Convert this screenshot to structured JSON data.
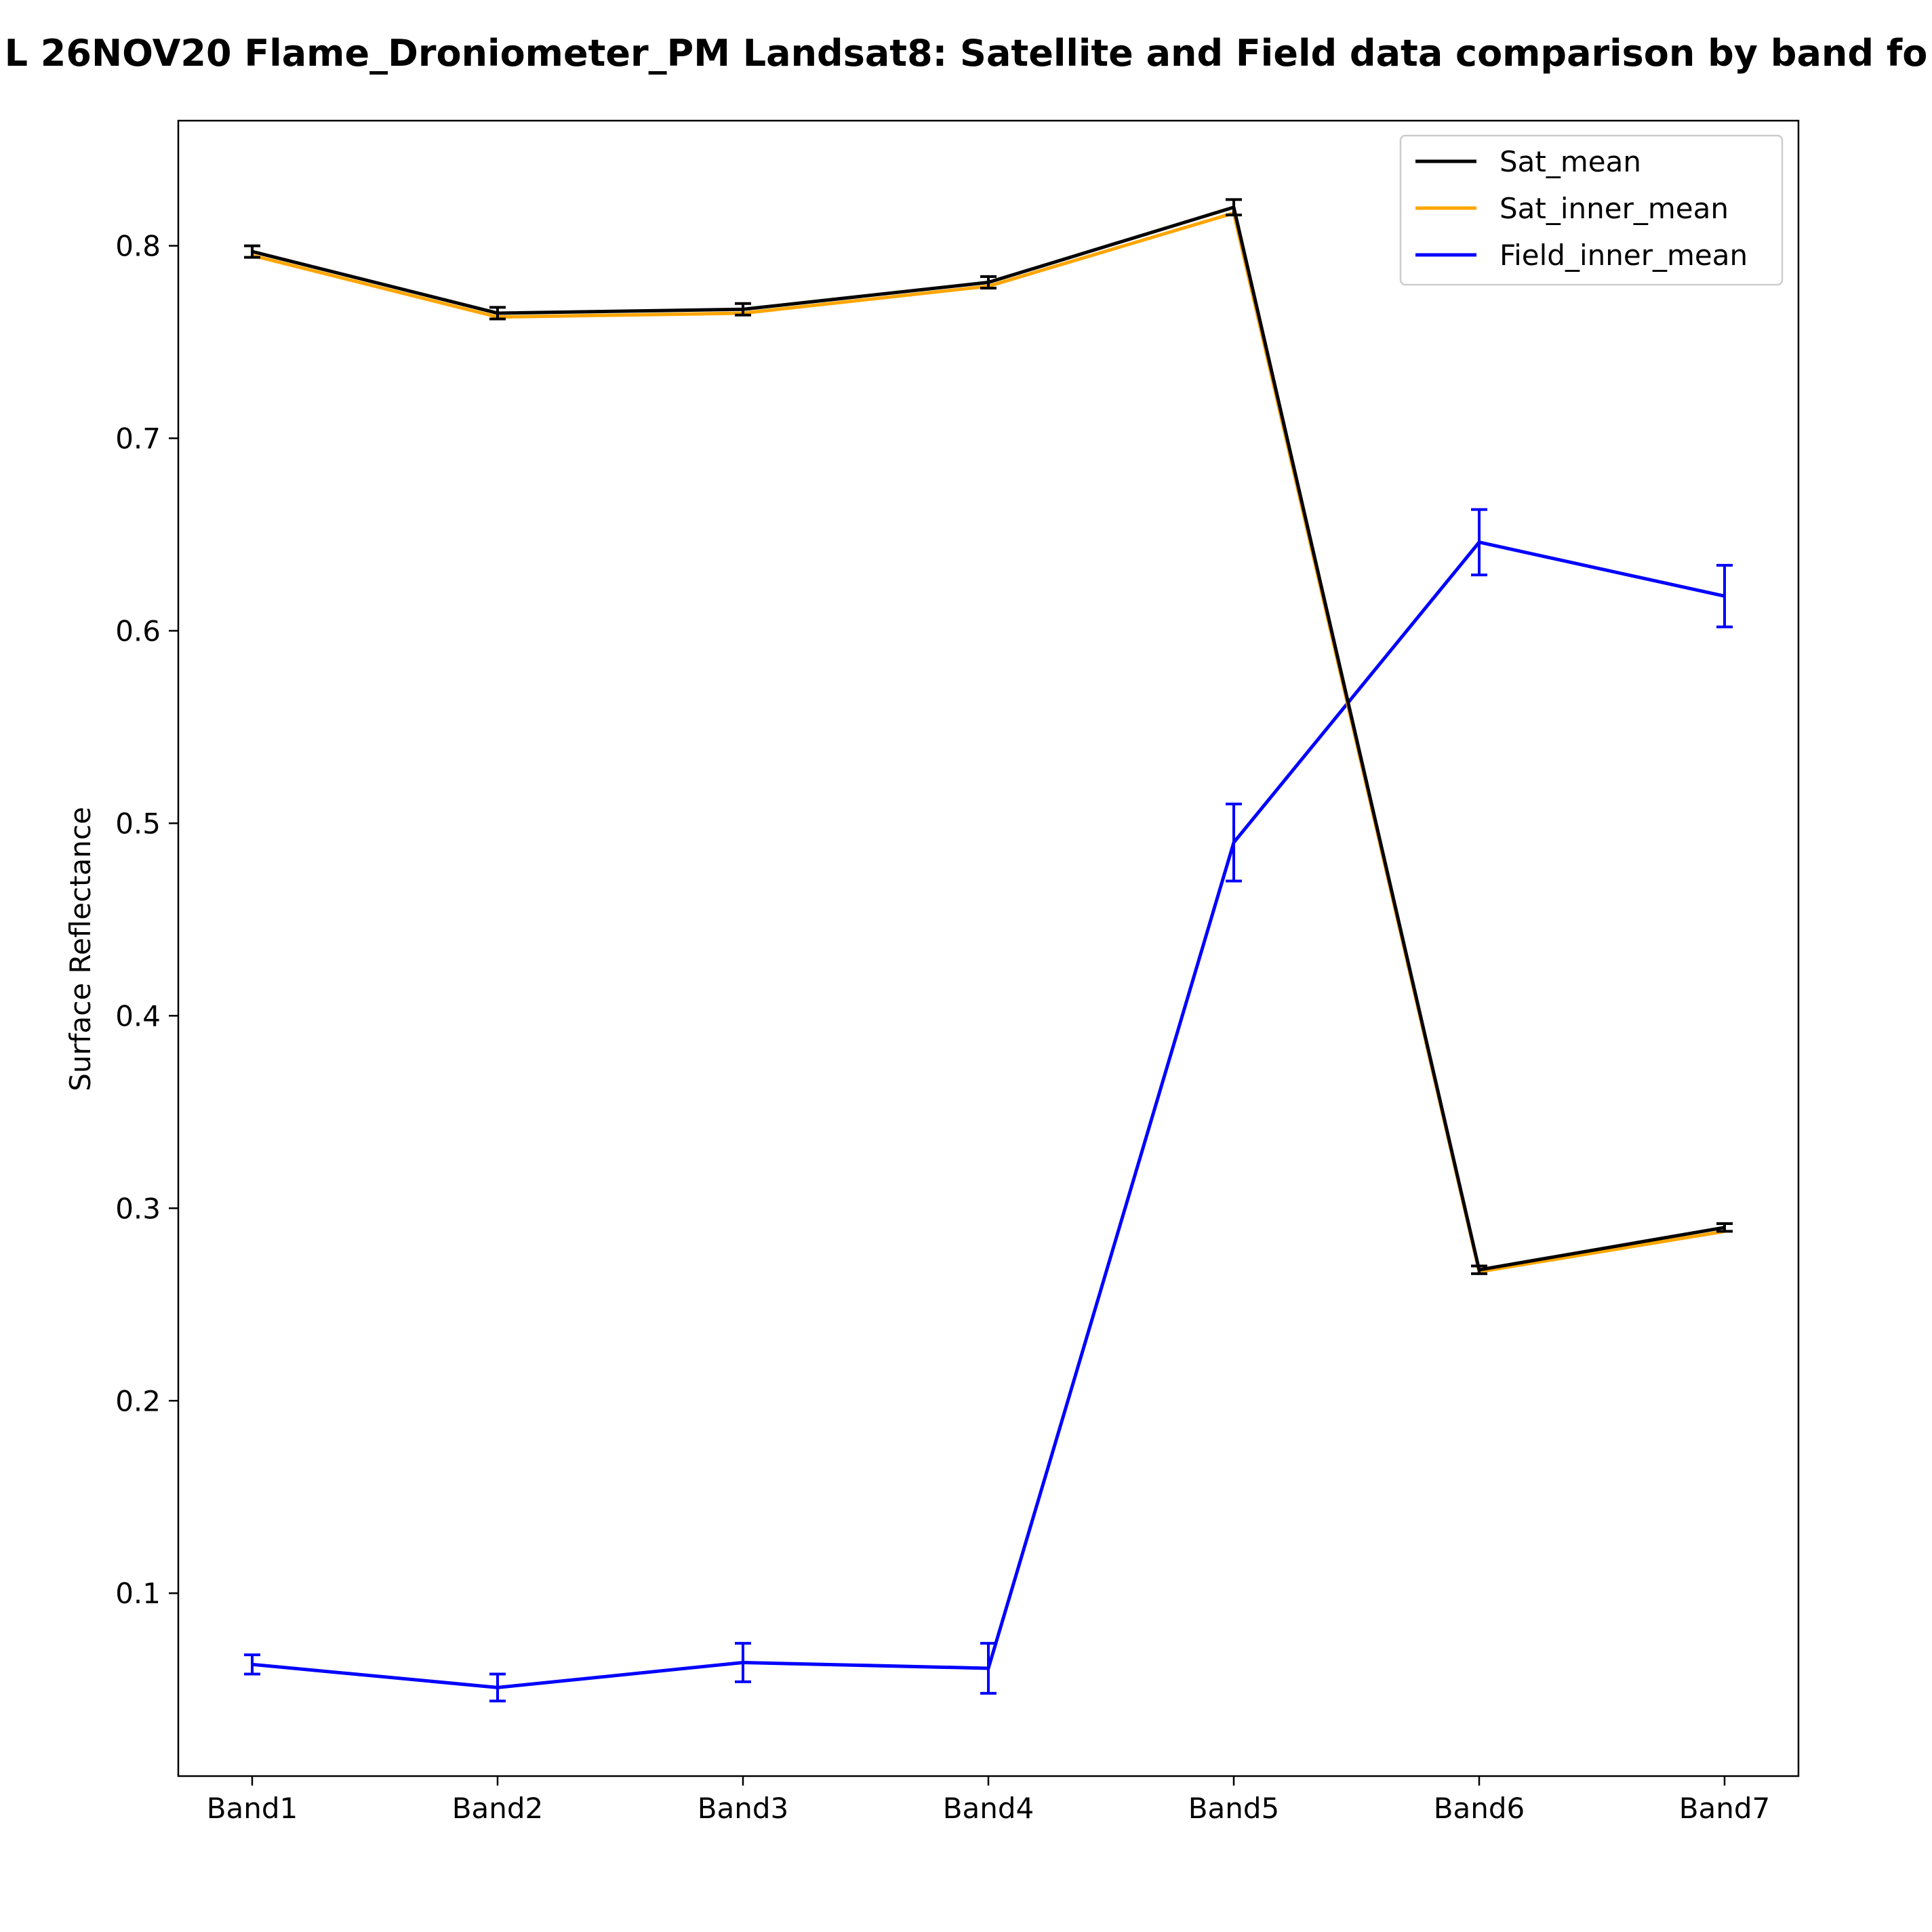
{
  "chart_data": {
    "type": "line",
    "title": "L 26NOV20 Flame_Droniometer_PM Landsat8: Satellite and Field data comparison by band fo",
    "xlabel": "",
    "ylabel": "Surface Reflectance",
    "categories": [
      "Band1",
      "Band2",
      "Band3",
      "Band4",
      "Band5",
      "Band6",
      "Band7"
    ],
    "ylim": [
      0.005,
      0.865
    ],
    "yticks": [
      0.1,
      0.2,
      0.3,
      0.4,
      0.5,
      0.6,
      0.7,
      0.8
    ],
    "ytick_labels": [
      "0.1",
      "0.2",
      "0.3",
      "0.4",
      "0.5",
      "0.6",
      "0.7",
      "0.8"
    ],
    "grid": false,
    "legend_position": "top-right",
    "series": [
      {
        "name": "Sat_mean",
        "color": "#000000",
        "values": [
          0.797,
          0.765,
          0.767,
          0.781,
          0.82,
          0.268,
          0.29
        ],
        "errors": [
          0.003,
          0.003,
          0.003,
          0.003,
          0.004,
          0.002,
          0.002
        ]
      },
      {
        "name": "Sat_inner_mean",
        "color": "#ffa500",
        "values": [
          0.795,
          0.763,
          0.765,
          0.779,
          0.817,
          0.267,
          0.288
        ],
        "errors": [
          0,
          0,
          0,
          0,
          0,
          0,
          0
        ]
      },
      {
        "name": "Field_inner_mean",
        "color": "#0000ff",
        "values": [
          0.063,
          0.051,
          0.064,
          0.061,
          0.49,
          0.646,
          0.618
        ],
        "errors": [
          0.005,
          0.007,
          0.01,
          0.013,
          0.02,
          0.017,
          0.016
        ]
      }
    ]
  }
}
